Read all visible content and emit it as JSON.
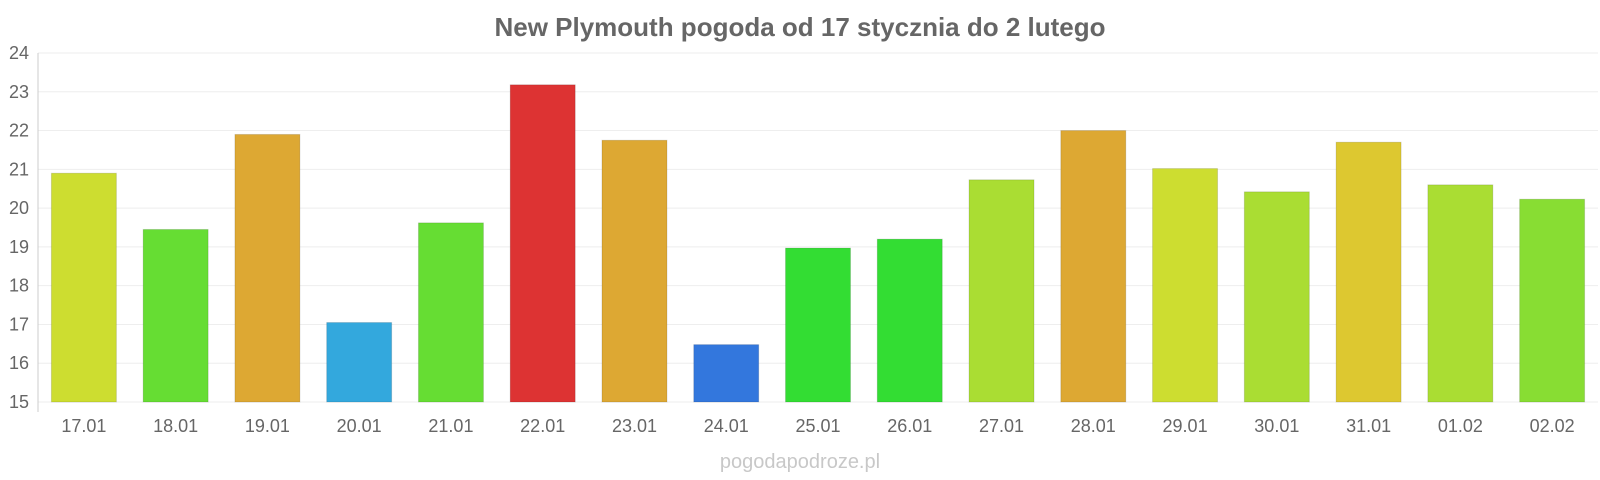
{
  "chart_data": {
    "type": "bar",
    "title": "New Plymouth pogoda od 17 stycznia do 2 lutego",
    "xlabel": "",
    "ylabel": "",
    "ylim": [
      15,
      24
    ],
    "yticks": [
      15,
      16,
      17,
      18,
      19,
      20,
      21,
      22,
      23,
      24
    ],
    "grid": true,
    "categories": [
      "17.01",
      "18.01",
      "19.01",
      "20.01",
      "21.01",
      "22.01",
      "23.01",
      "24.01",
      "25.01",
      "26.01",
      "27.01",
      "28.01",
      "29.01",
      "30.01",
      "31.01",
      "01.02",
      "02.02"
    ],
    "values": [
      20.9,
      19.45,
      21.9,
      17.05,
      19.62,
      23.18,
      21.75,
      16.48,
      18.97,
      19.2,
      20.73,
      22.0,
      21.02,
      20.42,
      21.7,
      20.6,
      20.23
    ],
    "colors": [
      "#cddd30",
      "#66dd33",
      "#dda833",
      "#33a8dd",
      "#66dd33",
      "#dd3333",
      "#dda833",
      "#3377dd",
      "#33dd33",
      "#33dd33",
      "#aadd33",
      "#dda833",
      "#cddd30",
      "#aadd33",
      "#ddc830",
      "#aadd33",
      "#88dd33"
    ]
  },
  "watermark": "pogodapodroze.pl"
}
